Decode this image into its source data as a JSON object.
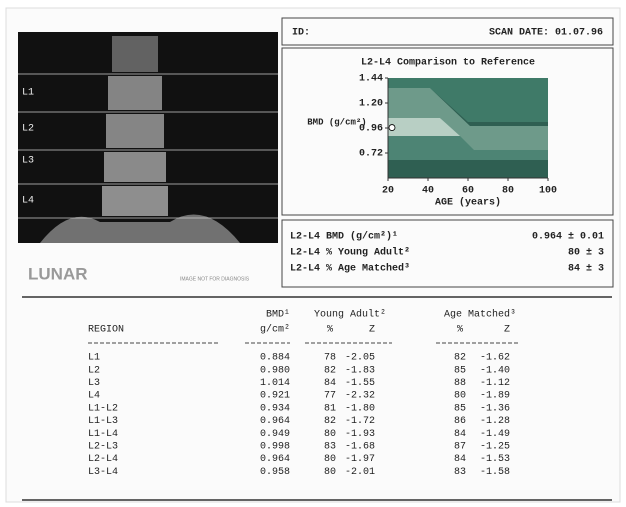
{
  "header": {
    "id_label": "ID:",
    "scan_date": "SCAN DATE: 01.07.96"
  },
  "scan": {
    "levels": [
      "L1",
      "L2",
      "L3",
      "L4"
    ],
    "logo": "LUNAR",
    "note": "IMAGE NOT FOR DIAGNOSIS"
  },
  "chart_data": {
    "type": "scatter",
    "title": "L2-L4 Comparison to Reference",
    "y_label": "BMD (g/cm²)",
    "x_label": "AGE (years)",
    "x": [
      22
    ],
    "values": [
      0.964
    ],
    "color": "#ffffff",
    "xlim": [
      20,
      100
    ],
    "ylim": [
      0.48,
      1.44
    ],
    "xticks": [
      20,
      40,
      60,
      80,
      100
    ],
    "yticks": [
      1.44,
      {
        "value": 1.2,
        "label": "1.20"
      },
      0.96,
      0.72
    ]
  },
  "summary": {
    "rows": [
      [
        "L2-L4 BMD (g/cm²)¹",
        "0.964 ± 0.01"
      ],
      [
        "L2-L4 % Young Adult²",
        "80 ± 3"
      ],
      [
        "L2-L4 % Age Matched³",
        "84 ± 3"
      ]
    ]
  },
  "table": {
    "bmd_header": "BMD¹",
    "young_adult": "Young Adult²",
    "age_matched": "Age Matched³",
    "columns": [
      "REGION",
      "g/cm²",
      "%",
      "Z",
      "%",
      "Z"
    ],
    "rows": [
      [
        "L1",
        "0.884",
        "78",
        "-2.05",
        "82",
        "-1.62"
      ],
      [
        "L2",
        "0.980",
        "82",
        "-1.83",
        "85",
        "-1.40"
      ],
      [
        "L3",
        "1.014",
        "84",
        "-1.55",
        "88",
        "-1.12"
      ],
      [
        "L4",
        "0.921",
        "77",
        "-2.32",
        "80",
        "-1.89"
      ],
      [
        "L1-L2",
        "0.934",
        "81",
        "-1.80",
        "85",
        "-1.36"
      ],
      [
        "L1-L3",
        "0.964",
        "82",
        "-1.72",
        "86",
        "-1.28"
      ],
      [
        "L1-L4",
        "0.949",
        "80",
        "-1.93",
        "84",
        "-1.49"
      ],
      [
        "L2-L3",
        "0.998",
        "83",
        "-1.68",
        "87",
        "-1.25"
      ],
      [
        "L2-L4",
        "0.964",
        "80",
        "-1.97",
        "84",
        "-1.53"
      ],
      [
        "L3-L4",
        "0.958",
        "80",
        "-2.01",
        "83",
        "-1.58"
      ]
    ]
  }
}
